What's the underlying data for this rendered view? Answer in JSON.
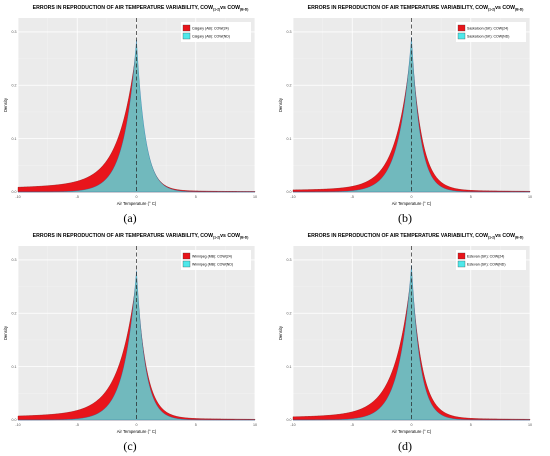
{
  "chart_data": [
    {
      "type": "area",
      "letter": "(a)",
      "title_main": "ERRORS IN REPRODUCTION OF AIR TEMPERATURE VARIABILITY, COW",
      "title_sub1": "(1-2)",
      "title_vs": "vs COW",
      "title_sub2": "(B-D)",
      "xlabel": "Air Temperature (° C)",
      "ylabel": "Density",
      "xlim": [
        -10,
        10
      ],
      "ylim": [
        0,
        0.3
      ],
      "xticks": [
        "-10",
        "-5",
        "0",
        "5",
        "10"
      ],
      "yticks": [
        "0.0",
        "0.1",
        "0.2",
        "0.3"
      ],
      "vline_x": 0,
      "legend_position": "top-right",
      "series": [
        {
          "name": "Calgary (AB): COW(24)",
          "color": "#e8151b",
          "peak": 0.27,
          "left_scale": 2.6,
          "right_scale": 1.35,
          "left_floor": 0.018,
          "right_floor": 0.003
        },
        {
          "name": "Calgary (AB): COW(ND)",
          "color": "#4fe8ea",
          "peak": 0.285,
          "left_scale": 1.9,
          "right_scale": 1.35,
          "left_floor": 0.0,
          "right_floor": 0.0
        }
      ]
    },
    {
      "type": "area",
      "letter": "(b)",
      "title_main": "ERRORS IN REPRODUCTION OF AIR TEMPERATURE VARIABILITY, COW",
      "title_sub1": "(1-2)",
      "title_vs": "vs COW",
      "title_sub2": "(B-D)",
      "xlabel": "Air Temperature (° C)",
      "ylabel": "Density",
      "xlim": [
        -10,
        10
      ],
      "ylim": [
        0,
        0.3
      ],
      "xticks": [
        "-10",
        "-5",
        "0",
        "5",
        "10"
      ],
      "yticks": [
        "0.0",
        "0.1",
        "0.2",
        "0.3"
      ],
      "vline_x": 0,
      "legend_position": "top-right",
      "series": [
        {
          "name": "Saskatoon (SK): COW(24)",
          "color": "#e8151b",
          "peak": 0.275,
          "left_scale": 2.3,
          "right_scale": 1.6,
          "left_floor": 0.008,
          "right_floor": 0.004
        },
        {
          "name": "Saskatoon (SK): COW(ND)",
          "color": "#4fe8ea",
          "peak": 0.29,
          "left_scale": 1.9,
          "right_scale": 1.35,
          "left_floor": 0.0,
          "right_floor": 0.0
        }
      ]
    },
    {
      "type": "area",
      "letter": "(c)",
      "title_main": "ERRORS IN REPRODUCTION OF AIR TEMPERATURE VARIABILITY, COW",
      "title_sub1": "(1-2)",
      "title_vs": "vs COW",
      "title_sub2": "(B-D)",
      "xlabel": "Air Temperature (° C)",
      "ylabel": "Density",
      "xlim": [
        -10,
        10
      ],
      "ylim": [
        0,
        0.3
      ],
      "xticks": [
        "-10",
        "-5",
        "0",
        "5",
        "10"
      ],
      "yticks": [
        "0.0",
        "0.1",
        "0.2",
        "0.3"
      ],
      "vline_x": 0,
      "legend_position": "top-right",
      "series": [
        {
          "name": "Winnipeg (MB): COW(24)",
          "color": "#e8151b",
          "peak": 0.265,
          "left_scale": 2.6,
          "right_scale": 1.5,
          "left_floor": 0.015,
          "right_floor": 0.004
        },
        {
          "name": "Winnipeg (MB): COW(ND)",
          "color": "#4fe8ea",
          "peak": 0.28,
          "left_scale": 1.9,
          "right_scale": 1.35,
          "left_floor": 0.0,
          "right_floor": 0.0
        }
      ]
    },
    {
      "type": "area",
      "letter": "(d)",
      "title_main": "ERRORS IN REPRODUCTION OF AIR TEMPERATURE VARIABILITY, COW",
      "title_sub1": "(1-2)",
      "title_vs": "vs COW",
      "title_sub2": "(B-D)",
      "xlabel": "Air Temperature (° C)",
      "ylabel": "Density",
      "xlim": [
        -10,
        10
      ],
      "ylim": [
        0,
        0.3
      ],
      "xticks": [
        "-10",
        "-5",
        "0",
        "5",
        "10"
      ],
      "yticks": [
        "0.0",
        "0.1",
        "0.2",
        "0.3"
      ],
      "vline_x": 0,
      "legend_position": "top-right",
      "series": [
        {
          "name": "Estevan (SK): COW(24)",
          "color": "#e8151b",
          "peak": 0.275,
          "left_scale": 2.5,
          "right_scale": 1.6,
          "left_floor": 0.012,
          "right_floor": 0.004
        },
        {
          "name": "Estevan (SK): COW(ND)",
          "color": "#4fe8ea",
          "peak": 0.29,
          "left_scale": 1.9,
          "right_scale": 1.35,
          "left_floor": 0.0,
          "right_floor": 0.0
        }
      ]
    }
  ]
}
